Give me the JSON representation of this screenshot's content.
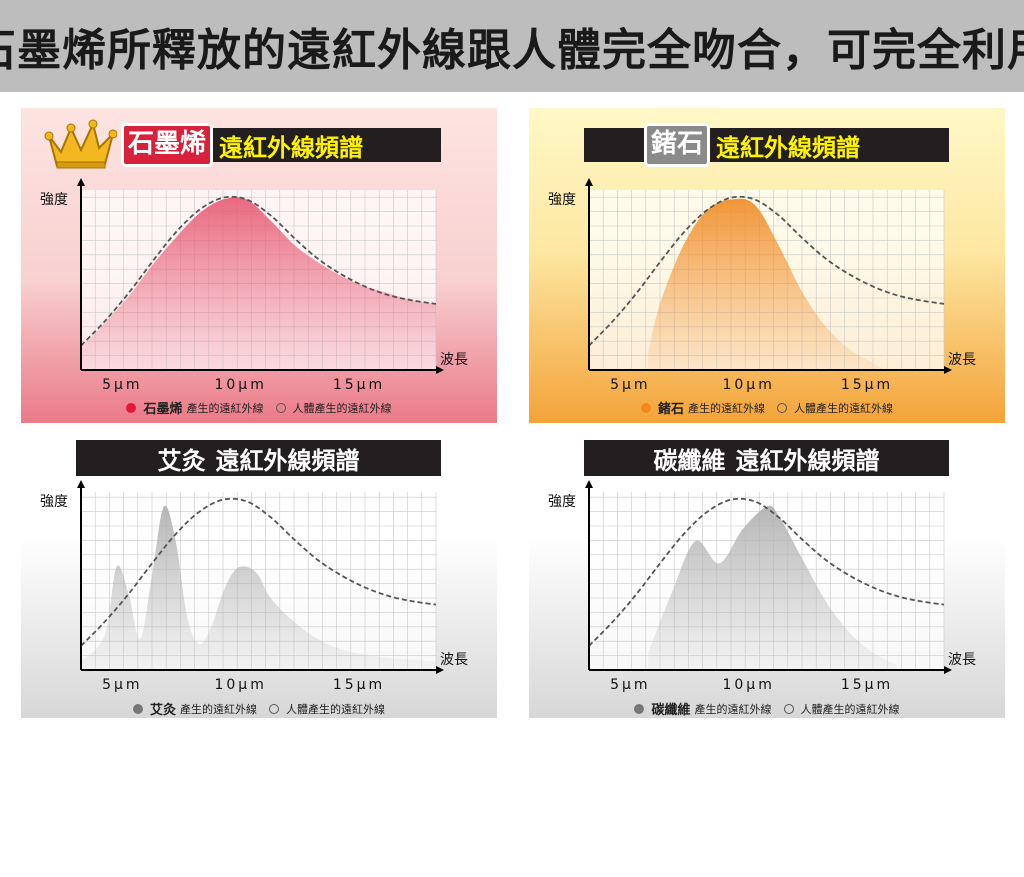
{
  "page_title": "石墨烯所釋放的遠紅外線跟人體完全吻合，可完全利用",
  "chart_data": [
    {
      "type": "area",
      "key": "graphene",
      "title_material": "石墨烯",
      "title_rest": "遠紅外線頻譜",
      "ylabel": "強度",
      "xlabel": "波長",
      "tick_labels": [
        "5μm",
        "10μm",
        "15μm"
      ],
      "xlim": [
        3,
        18
      ],
      "ylim": [
        0,
        1
      ],
      "series": [
        {
          "name": "石墨烯產生的遠紅外線",
          "color": "#e8627a",
          "x": [
            3,
            4,
            5,
            6,
            7,
            8,
            9,
            10,
            11,
            12,
            13,
            14,
            15,
            16,
            17,
            18
          ],
          "y": [
            0.13,
            0.27,
            0.42,
            0.6,
            0.76,
            0.9,
            0.98,
            0.98,
            0.86,
            0.72,
            0.62,
            0.54,
            0.48,
            0.44,
            0.4,
            0.38
          ]
        },
        {
          "name": "人體產生的遠紅外線",
          "color": "#555555",
          "x": [
            3,
            4,
            5,
            6,
            7,
            8,
            9,
            10,
            11,
            12,
            13,
            14,
            15,
            16,
            17,
            18
          ],
          "y": [
            0.14,
            0.28,
            0.44,
            0.62,
            0.79,
            0.92,
            0.99,
            0.98,
            0.89,
            0.76,
            0.64,
            0.55,
            0.48,
            0.43,
            0.4,
            0.38
          ]
        }
      ],
      "legend": {
        "material": "石墨烯",
        "material_suffix": "產生的遠紅外線",
        "human": "人體產生的遠紅外線"
      }
    },
    {
      "type": "area",
      "key": "germanium",
      "title_material": "鍺石",
      "title_rest": "遠紅外線頻譜",
      "ylabel": "強度",
      "xlabel": "波長",
      "tick_labels": [
        "5μm",
        "10μm",
        "15μm"
      ],
      "xlim": [
        3,
        18
      ],
      "ylim": [
        0,
        1
      ],
      "series": [
        {
          "name": "鍺石產生的遠紅外線",
          "color": "#f0912f",
          "x": [
            5.5,
            6,
            7,
            8,
            9,
            10,
            11,
            12,
            13,
            14,
            15,
            15.5
          ],
          "y": [
            0.1,
            0.38,
            0.72,
            0.92,
            0.98,
            0.95,
            0.72,
            0.45,
            0.25,
            0.12,
            0.04,
            0.0
          ]
        },
        {
          "name": "人體產生的遠紅外線",
          "color": "#555555",
          "x": [
            3,
            4,
            5,
            6,
            7,
            8,
            9,
            10,
            11,
            12,
            13,
            14,
            15,
            16,
            17,
            18
          ],
          "y": [
            0.14,
            0.28,
            0.44,
            0.62,
            0.79,
            0.92,
            0.99,
            0.98,
            0.89,
            0.76,
            0.64,
            0.55,
            0.48,
            0.43,
            0.4,
            0.38
          ]
        }
      ],
      "legend": {
        "material": "鍺石",
        "material_suffix": "產生的遠紅外線",
        "human": "人體產生的遠紅外線"
      }
    },
    {
      "type": "area",
      "key": "moxa",
      "title_material": "艾灸",
      "title_rest": "遠紅外線頻譜",
      "ylabel": "強度",
      "xlabel": "波長",
      "tick_labels": [
        "5μm",
        "10μm",
        "15μm"
      ],
      "xlim": [
        3,
        18
      ],
      "ylim": [
        0,
        1
      ],
      "series": [
        {
          "name": "艾灸產生的遠紅外線",
          "color": "#b3b3b3",
          "x": [
            3,
            4,
            4.5,
            5,
            5.5,
            6,
            6.5,
            7,
            7.5,
            8,
            8.5,
            9,
            9.5,
            10,
            10.5,
            11,
            12,
            13,
            14,
            15,
            16,
            17,
            18
          ],
          "y": [
            0.05,
            0.2,
            0.6,
            0.45,
            0.18,
            0.55,
            0.95,
            0.75,
            0.3,
            0.15,
            0.25,
            0.45,
            0.58,
            0.6,
            0.55,
            0.42,
            0.28,
            0.18,
            0.12,
            0.09,
            0.07,
            0.06,
            0.05
          ]
        },
        {
          "name": "人體產生的遠紅外線",
          "color": "#555555",
          "x": [
            3,
            4,
            5,
            6,
            7,
            8,
            9,
            10,
            11,
            12,
            13,
            14,
            15,
            16,
            17,
            18
          ],
          "y": [
            0.14,
            0.28,
            0.44,
            0.62,
            0.79,
            0.92,
            0.99,
            0.98,
            0.89,
            0.76,
            0.64,
            0.55,
            0.48,
            0.43,
            0.4,
            0.38
          ]
        }
      ],
      "legend": {
        "material": "艾灸",
        "material_suffix": " 產生的遠紅外線",
        "human": "人體產生的遠紅外線"
      }
    },
    {
      "type": "area",
      "key": "carbon",
      "title_material": "碳纖維",
      "title_rest": "遠紅外線頻譜",
      "ylabel": "強度",
      "xlabel": "波長",
      "tick_labels": [
        "5μm",
        "10μm",
        "15μm"
      ],
      "xlim": [
        3,
        18
      ],
      "ylim": [
        0,
        1
      ],
      "series": [
        {
          "name": "碳纖維產生的遠紅外線",
          "color": "#b3b3b3",
          "x": [
            5.5,
            6.5,
            7.5,
            8.5,
            9.5,
            10.5,
            11,
            12,
            13,
            14,
            15,
            16
          ],
          "y": [
            0.1,
            0.45,
            0.75,
            0.62,
            0.82,
            0.95,
            0.9,
            0.65,
            0.4,
            0.22,
            0.1,
            0.03
          ]
        },
        {
          "name": "人體產生的遠紅外線",
          "color": "#555555",
          "x": [
            3,
            4,
            5,
            6,
            7,
            8,
            9,
            10,
            11,
            12,
            13,
            14,
            15,
            16,
            17,
            18
          ],
          "y": [
            0.14,
            0.28,
            0.44,
            0.62,
            0.79,
            0.92,
            0.99,
            0.98,
            0.89,
            0.76,
            0.64,
            0.55,
            0.48,
            0.43,
            0.4,
            0.38
          ]
        }
      ],
      "legend": {
        "material": "碳纖維",
        "material_suffix": "產生的遠紅外線",
        "human": "人體產生的遠紅外線"
      }
    }
  ]
}
